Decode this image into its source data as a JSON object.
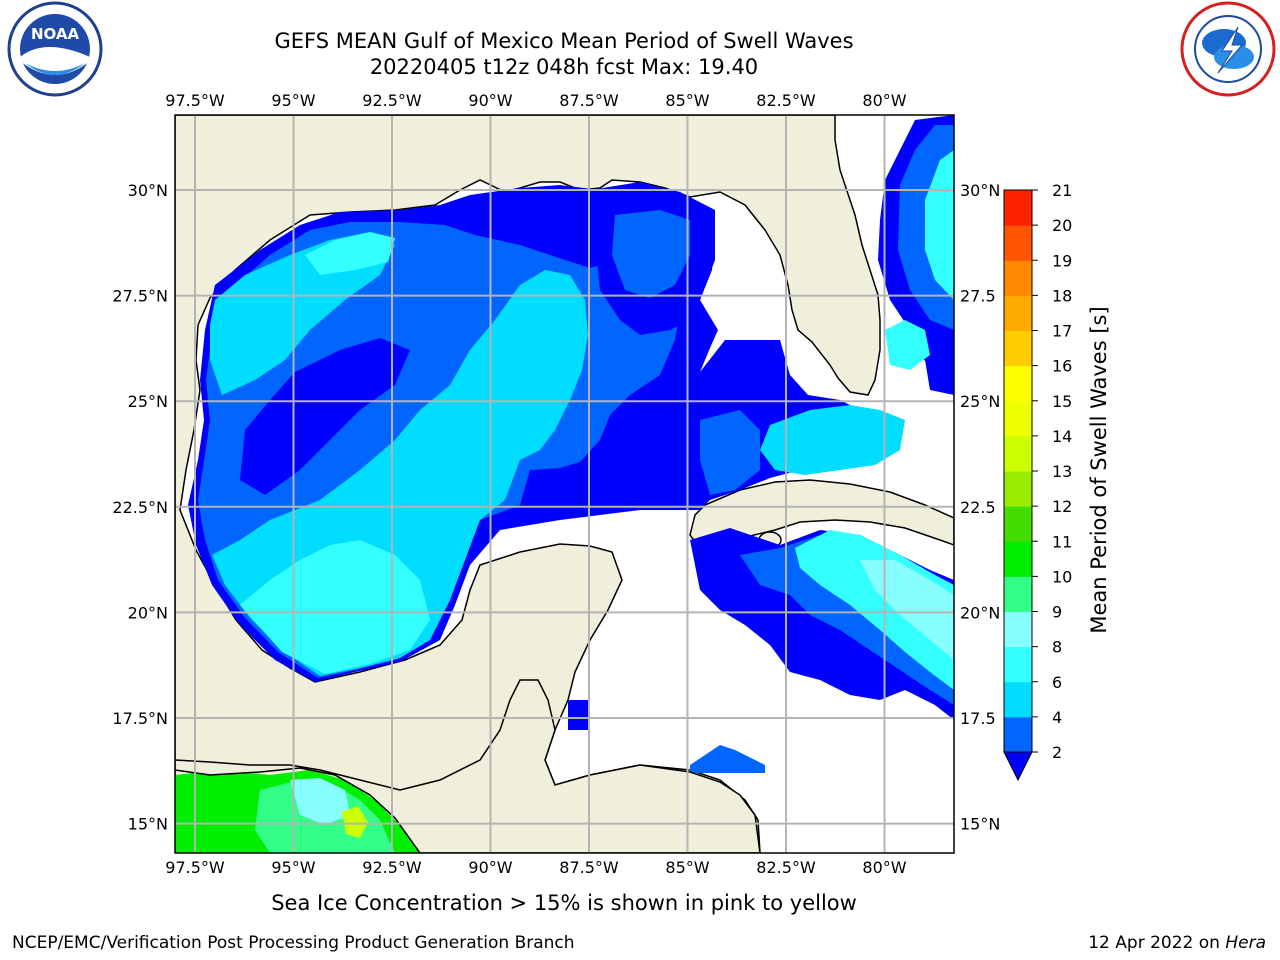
{
  "header": {
    "title_line1": "GEFS MEAN Gulf of Mexico Mean Period of Swell Waves",
    "title_line2": "20220405 t12z 048h fcst   Max: 19.40"
  },
  "logos": {
    "left": "noaa-logo",
    "right": "nws-logo"
  },
  "map": {
    "lon_ticks": [
      "97.5°W",
      "95°W",
      "92.5°W",
      "90°W",
      "87.5°W",
      "85°W",
      "82.5°W",
      "80°W"
    ],
    "lat_ticks_left": [
      "30°N",
      "27.5°N",
      "25°N",
      "22.5°N",
      "20°N",
      "17.5°N",
      "15°N"
    ],
    "lat_ticks_right": [
      "30°N",
      "27.5",
      "25°N",
      "22.5",
      "20°N",
      "17.5",
      "15°N"
    ],
    "land_color": "#efefdc",
    "grid_color": "#b4b4b4"
  },
  "colorbar": {
    "label": "Mean Period of Swell Waves [s]",
    "ticks": [
      "2",
      "4",
      "6",
      "8",
      "9",
      "10",
      "11",
      "12",
      "13",
      "14",
      "15",
      "16",
      "17",
      "18",
      "19",
      "20",
      "21"
    ],
    "colors": [
      "#0066ff",
      "#00ddff",
      "#33ffff",
      "#88ffff",
      "#33ff88",
      "#00ee00",
      "#44dd00",
      "#99ee00",
      "#ccff00",
      "#eeff00",
      "#ffff00",
      "#ffcc00",
      "#ffaa00",
      "#ff8800",
      "#ff5500",
      "#ff2200"
    ],
    "extend_color": "#0000ff"
  },
  "subtitle": "Sea Ice Concentration > 15% is shown in pink to yellow",
  "footer": {
    "left": "NCEP/EMC/Verification Post Processing Product Generation Branch",
    "right_date": "12 Apr 2022 on ",
    "right_host": "Hera"
  }
}
